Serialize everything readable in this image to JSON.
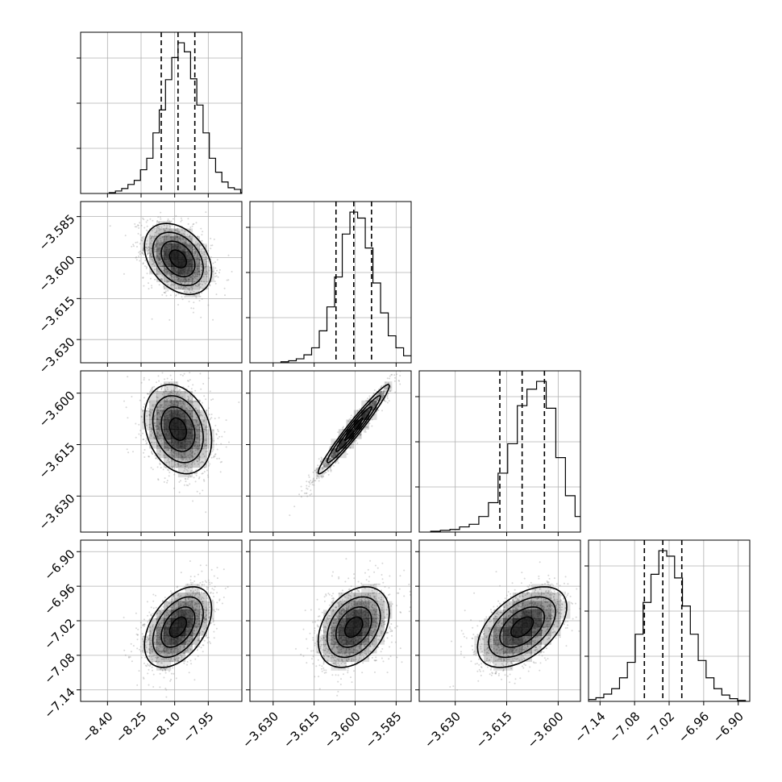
{
  "chart_data": {
    "type": "corner",
    "grid": true,
    "parameters": [
      {
        "index": 0,
        "mean": -8.085,
        "sd": 0.075,
        "range": [
          -8.52,
          -7.8
        ],
        "ticks": [
          -8.4,
          -8.25,
          -8.1,
          -7.95
        ],
        "tick_labels": [
          "−8.40",
          "−8.25",
          "−8.10",
          "−7.95"
        ],
        "quantiles": [
          -8.16,
          -8.085,
          -8.01
        ]
      },
      {
        "index": 1,
        "mean": -3.6005,
        "sd": 0.0065,
        "range": [
          -3.6385,
          -3.5795
        ],
        "ticks": [
          -3.63,
          -3.615,
          -3.6,
          -3.585
        ],
        "tick_labels": [
          "−3.630",
          "−3.615",
          "−3.600",
          "−3.585"
        ],
        "quantiles": [
          -3.607,
          -3.6005,
          -3.594
        ]
      },
      {
        "index": 2,
        "mean": -3.6105,
        "sd": 0.0065,
        "range": [
          -3.6405,
          -3.5935
        ],
        "ticks": [
          -3.63,
          -3.615,
          -3.6
        ],
        "tick_labels": [
          "−3.630",
          "−3.615",
          "−3.600"
        ],
        "quantiles": [
          -3.617,
          -3.6105,
          -3.604
        ]
      },
      {
        "index": 3,
        "mean": -7.031,
        "sd": 0.035,
        "range": [
          -7.16,
          -6.88
        ],
        "ticks": [
          -7.14,
          -7.08,
          -7.02,
          -6.96,
          -6.9
        ],
        "tick_labels": [
          "−7.14",
          "−7.08",
          "−7.02",
          "−6.96",
          "−6.90"
        ],
        "quantiles": [
          -7.063,
          -7.031,
          -6.998
        ]
      }
    ],
    "histograms": [
      {
        "parameter": 0,
        "counts": [
          1,
          3,
          6,
          11,
          16,
          29,
          43,
          74,
          102,
          139,
          166,
          184,
          173,
          140,
          108,
          74,
          43,
          26,
          14,
          7,
          5,
          1
        ]
      },
      {
        "parameter": 1,
        "counts": [
          1,
          2,
          4,
          8,
          15,
          32,
          56,
          86,
          129,
          151,
          145,
          115,
          80,
          50,
          27,
          15,
          7,
          3,
          1
        ]
      },
      {
        "parameter": 2,
        "counts": [
          1,
          2,
          3,
          6,
          9,
          18,
          34,
          68,
          102,
          146,
          165,
          174,
          143,
          86,
          42,
          18,
          8,
          4,
          1
        ]
      },
      {
        "parameter": 3,
        "counts": [
          1,
          2,
          4,
          8,
          14,
          26,
          43,
          74,
          109,
          140,
          166,
          160,
          136,
          105,
          74,
          45,
          26,
          14,
          7,
          3,
          1
        ]
      }
    ],
    "pairs": [
      {
        "x": 0,
        "y": 1,
        "correlation": -0.35
      },
      {
        "x": 0,
        "y": 2,
        "correlation": -0.25
      },
      {
        "x": 1,
        "y": 2,
        "correlation": 0.97
      },
      {
        "x": 0,
        "y": 3,
        "correlation": 0.45
      },
      {
        "x": 1,
        "y": 3,
        "correlation": 0.35
      },
      {
        "x": 2,
        "y": 3,
        "correlation": 0.5
      }
    ],
    "contour_levels_sigma": [
      0.5,
      1.0,
      1.5,
      2.0
    ],
    "colors": {
      "line": "#000000",
      "points": "#8c8c8c",
      "density": "#000000",
      "grid": "#b0b0b0"
    }
  }
}
